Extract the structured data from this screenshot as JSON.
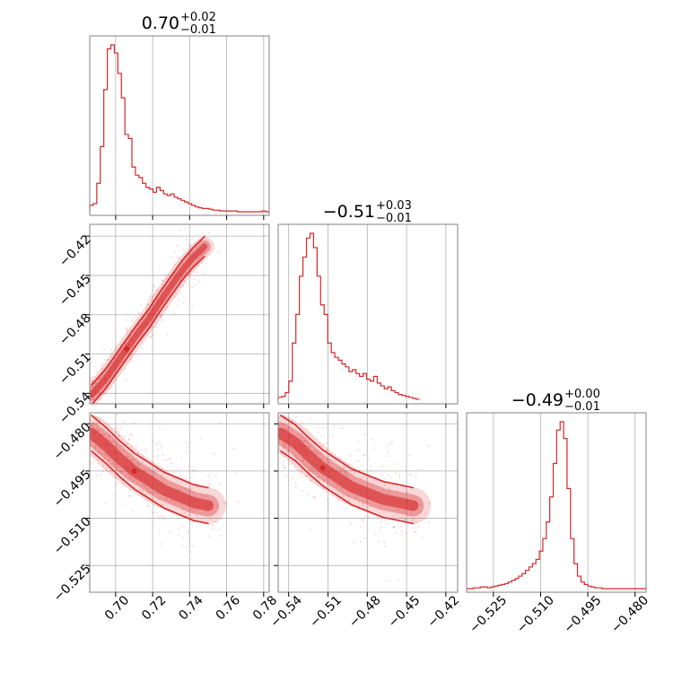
{
  "chart_data": {
    "type": "corner",
    "color": "#d62728",
    "grid": true,
    "parameters": [
      {
        "range": [
          0.686,
          0.783
        ],
        "ticks": [
          "0.70",
          "0.72",
          "0.74",
          "0.76",
          "0.78"
        ],
        "tick_values": [
          0.7,
          0.72,
          0.74,
          0.76,
          0.78
        ]
      },
      {
        "range": [
          -0.548,
          -0.411
        ],
        "ticks": [
          "−0.54",
          "−0.51",
          "−0.48",
          "−0.45",
          "−0.42"
        ],
        "tick_values": [
          -0.54,
          -0.51,
          -0.48,
          -0.45,
          -0.42
        ]
      },
      {
        "range": [
          -0.5335,
          -0.4765
        ],
        "ticks": [
          "−0.525",
          "−0.510",
          "−0.495",
          "−0.480"
        ],
        "tick_values": [
          -0.525,
          -0.51,
          -0.495,
          -0.48
        ]
      }
    ],
    "titles": [
      {
        "value": "0.70",
        "upper": "+0.02",
        "lower": "−0.01"
      },
      {
        "value": "−0.51",
        "upper": "+0.03",
        "lower": "−0.01"
      },
      {
        "value": "−0.49",
        "upper": "+0.00",
        "lower": "−0.01"
      }
    ],
    "histograms": [
      {
        "bin_start": 0.686,
        "bin_width": 0.0019,
        "counts": [
          8,
          10,
          35,
          80,
          150,
          200,
          205,
          195,
          170,
          140,
          95,
          90,
          55,
          45,
          42,
          35,
          30,
          28,
          24,
          30,
          26,
          22,
          20,
          22,
          18,
          16,
          14,
          12,
          10,
          8,
          6,
          5,
          4,
          4,
          3,
          2,
          2,
          1,
          1,
          1,
          1,
          1,
          0,
          0,
          0,
          0,
          0,
          0,
          0,
          1,
          0
        ]
      },
      {
        "bin_start": -0.548,
        "bin_width": 0.0027,
        "counts": [
          3,
          4,
          8,
          20,
          60,
          90,
          130,
          150,
          170,
          175,
          160,
          130,
          100,
          90,
          60,
          50,
          45,
          42,
          38,
          35,
          30,
          32,
          28,
          25,
          28,
          22,
          20,
          25,
          18,
          15,
          12,
          14,
          10,
          8,
          6,
          5,
          4,
          3,
          2,
          1
        ]
      },
      {
        "bin_start": -0.5335,
        "bin_width": 0.0011,
        "counts": [
          0,
          0,
          1,
          1,
          2,
          2,
          1,
          2,
          3,
          4,
          5,
          6,
          8,
          10,
          12,
          15,
          18,
          22,
          26,
          30,
          35,
          45,
          60,
          80,
          110,
          150,
          190,
          200,
          180,
          120,
          60,
          30,
          15,
          8,
          5,
          3,
          2,
          1,
          1,
          0,
          0,
          0,
          0,
          0,
          0,
          0,
          0,
          0,
          0,
          0,
          0,
          0
        ]
      }
    ],
    "pairs": [
      {
        "x_param": 0,
        "y_param": 1,
        "trend": [
          [
            0.687,
            -0.541
          ],
          [
            0.694,
            -0.53
          ],
          [
            0.7,
            -0.518
          ],
          [
            0.706,
            -0.506
          ],
          [
            0.712,
            -0.494
          ],
          [
            0.718,
            -0.483
          ],
          [
            0.724,
            -0.47
          ],
          [
            0.73,
            -0.458
          ],
          [
            0.736,
            -0.446
          ],
          [
            0.742,
            -0.436
          ],
          [
            0.748,
            -0.428
          ]
        ]
      },
      {
        "x_param": 0,
        "y_param": 2,
        "trend": [
          [
            0.687,
            -0.483
          ],
          [
            0.695,
            -0.487
          ],
          [
            0.702,
            -0.491
          ],
          [
            0.71,
            -0.495
          ],
          [
            0.718,
            -0.498
          ],
          [
            0.726,
            -0.501
          ],
          [
            0.734,
            -0.503
          ],
          [
            0.742,
            -0.505
          ],
          [
            0.75,
            -0.506
          ]
        ]
      },
      {
        "x_param": 1,
        "y_param": 2,
        "trend": [
          [
            -0.546,
            -0.483
          ],
          [
            -0.535,
            -0.486
          ],
          [
            -0.525,
            -0.49
          ],
          [
            -0.514,
            -0.494
          ],
          [
            -0.503,
            -0.497
          ],
          [
            -0.492,
            -0.5
          ],
          [
            -0.48,
            -0.502
          ],
          [
            -0.468,
            -0.504
          ],
          [
            -0.456,
            -0.505
          ],
          [
            -0.445,
            -0.506
          ]
        ]
      }
    ]
  }
}
